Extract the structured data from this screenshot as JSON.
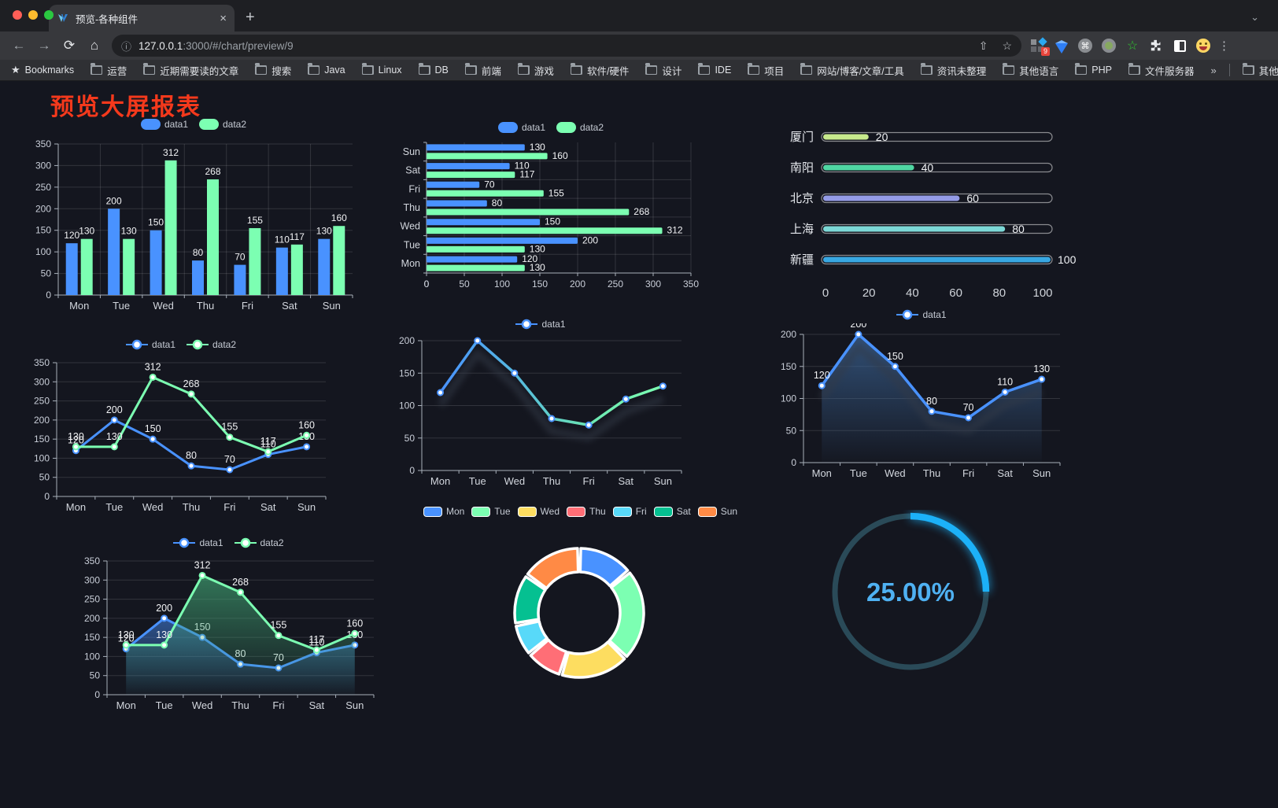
{
  "browser": {
    "traffic_lights": [
      "#ff5f57",
      "#febc2e",
      "#2ac840"
    ],
    "tab": {
      "title": "预览-各种组件",
      "close_glyph": "×",
      "new_tab_glyph": "+",
      "chevron_glyph": "⌄"
    },
    "toolbar": {
      "back_glyph": "←",
      "forward_glyph": "→",
      "reload_glyph": "⟳",
      "home_glyph": "⌂",
      "info_glyph": "ⓘ",
      "url_host": "127.0.0.1",
      "url_rest": ":3000/#/chart/preview/9",
      "share_glyph": "⇧",
      "star_glyph": "☆",
      "cmd_glyph": "⌘",
      "extension_badge": "9",
      "green_star_glyph": "☆",
      "puzzle_glyph": "",
      "menu_glyph": "⋮"
    },
    "bookmarks_bar": {
      "star_glyph": "★",
      "label": "Bookmarks",
      "folders": [
        "运营",
        "近期需要读的文章",
        "搜索",
        "Java",
        "Linux",
        "DB",
        "前端",
        "游戏",
        "软件/硬件",
        "设计",
        "IDE",
        "项目",
        "网站/博客/文章/工具",
        "资讯未整理",
        "其他语言",
        "PHP",
        "文件服务器"
      ],
      "overflow_glyph": "»",
      "other_label": "其他书签"
    }
  },
  "page": {
    "title": "预览大屏报表",
    "title_color": "#f4391c",
    "background": "#14161f"
  },
  "chart_data": [
    {
      "id": "bar-grouped",
      "type": "bar",
      "legend_position": "top",
      "categories": [
        "Mon",
        "Tue",
        "Wed",
        "Thu",
        "Fri",
        "Sat",
        "Sun"
      ],
      "series": [
        {
          "name": "data1",
          "color": "#4992ff",
          "values": [
            120,
            200,
            150,
            80,
            70,
            110,
            130
          ]
        },
        {
          "name": "data2",
          "color": "#7cffb2",
          "values": [
            130,
            130,
            312,
            268,
            155,
            117,
            160
          ]
        }
      ],
      "ylim": [
        0,
        350
      ],
      "yticks": [
        0,
        50,
        100,
        150,
        200,
        250,
        300,
        350
      ],
      "grid": true,
      "value_labels": true
    },
    {
      "id": "hbar-grouped",
      "type": "bar-horizontal",
      "legend_position": "top",
      "categories": [
        "Mon",
        "Tue",
        "Wed",
        "Thu",
        "Fri",
        "Sat",
        "Sun"
      ],
      "categories_axis_order": "bottom-to-top",
      "series": [
        {
          "name": "data1",
          "color": "#4992ff",
          "values": [
            120,
            200,
            150,
            80,
            70,
            110,
            130
          ]
        },
        {
          "name": "data2",
          "color": "#7cffb2",
          "values": [
            130,
            130,
            312,
            268,
            155,
            117,
            160
          ]
        }
      ],
      "xlim": [
        0,
        350
      ],
      "xticks": [
        0,
        50,
        100,
        150,
        200,
        250,
        300,
        350
      ],
      "grid": true,
      "value_labels": true
    },
    {
      "id": "capsule-progress",
      "type": "bar-horizontal",
      "variant": "capsule",
      "categories": [
        "厦门",
        "南阳",
        "北京",
        "上海",
        "新疆"
      ],
      "values": [
        20,
        40,
        60,
        80,
        100
      ],
      "colors": [
        "#c7e98c",
        "#4fd6a2",
        "#949be6",
        "#7cd8d6",
        "#38a7e2"
      ],
      "xlim": [
        0,
        100
      ],
      "xticks": [
        0,
        20,
        40,
        60,
        80,
        100
      ],
      "value_labels": true
    },
    {
      "id": "line-two",
      "type": "line",
      "legend_position": "top",
      "categories": [
        "Mon",
        "Tue",
        "Wed",
        "Thu",
        "Fri",
        "Sat",
        "Sun"
      ],
      "series": [
        {
          "name": "data1",
          "color": "#4992ff",
          "values": [
            120,
            200,
            150,
            80,
            70,
            110,
            130
          ]
        },
        {
          "name": "data2",
          "color": "#7cffb2",
          "values": [
            130,
            130,
            312,
            268,
            155,
            117,
            160
          ]
        }
      ],
      "ylim": [
        0,
        350
      ],
      "yticks": [
        0,
        50,
        100,
        150,
        200,
        250,
        300,
        350
      ],
      "grid": true,
      "value_labels": true
    },
    {
      "id": "line-gradient",
      "type": "line",
      "legend_position": "top",
      "categories": [
        "Mon",
        "Tue",
        "Wed",
        "Thu",
        "Fri",
        "Sat",
        "Sun"
      ],
      "series": [
        {
          "name": "data1",
          "color": "#4992ff",
          "color_gradient": [
            "#4992ff",
            "#55b8e0",
            "#6ce6b2",
            "#7cffb2"
          ],
          "values": [
            120,
            200,
            150,
            80,
            70,
            110,
            130
          ]
        }
      ],
      "ylim": [
        0,
        200
      ],
      "yticks": [
        0,
        50,
        100,
        150,
        200
      ],
      "grid": true,
      "value_labels": false,
      "shadow": true
    },
    {
      "id": "area-single",
      "type": "area",
      "legend_position": "top",
      "categories": [
        "Mon",
        "Tue",
        "Wed",
        "Thu",
        "Fri",
        "Sat",
        "Sun"
      ],
      "series": [
        {
          "name": "data1",
          "color": "#4992ff",
          "fill_gradient": [
            "rgba(62,106,158,0.70)",
            "rgba(62,106,158,0.02)"
          ],
          "values": [
            120,
            200,
            150,
            80,
            70,
            110,
            130
          ]
        }
      ],
      "ylim": [
        0,
        200
      ],
      "yticks": [
        0,
        50,
        100,
        150,
        200
      ],
      "grid": true,
      "value_labels": true,
      "shadow": true
    },
    {
      "id": "area-two",
      "type": "area",
      "legend_position": "top",
      "categories": [
        "Mon",
        "Tue",
        "Wed",
        "Thu",
        "Fri",
        "Sat",
        "Sun"
      ],
      "series": [
        {
          "name": "data1",
          "color": "#4992ff",
          "fill_gradient": [
            "rgba(73,146,255,0.50)",
            "rgba(73,146,255,0.02)"
          ],
          "values": [
            120,
            200,
            150,
            80,
            70,
            110,
            130
          ]
        },
        {
          "name": "data2",
          "color": "#7cffb2",
          "fill_gradient": [
            "rgba(66,168,118,0.65)",
            "rgba(66,168,118,0.02)"
          ],
          "values": [
            130,
            130,
            312,
            268,
            155,
            117,
            160
          ]
        }
      ],
      "ylim": [
        0,
        350
      ],
      "yticks": [
        0,
        50,
        100,
        150,
        200,
        250,
        300,
        350
      ],
      "grid": true,
      "value_labels": true
    },
    {
      "id": "donut",
      "type": "pie",
      "legend_position": "top",
      "inner_radius_ratio": 0.63,
      "categories": [
        "Mon",
        "Tue",
        "Wed",
        "Thu",
        "Fri",
        "Sat",
        "Sun"
      ],
      "values": [
        120,
        200,
        150,
        80,
        70,
        110,
        130
      ],
      "colors": [
        "#4992ff",
        "#7cffb2",
        "#fddd60",
        "#ff6e76",
        "#58d9f9",
        "#05c091",
        "#ff8a45"
      ],
      "border_color": "#ffffff"
    },
    {
      "id": "ring-progress",
      "type": "gauge",
      "value": 25,
      "label": "25.00%",
      "progress_color": "#1cb1f8",
      "track_color": "#2a4a58",
      "text_color": "#4fb1f2"
    }
  ]
}
